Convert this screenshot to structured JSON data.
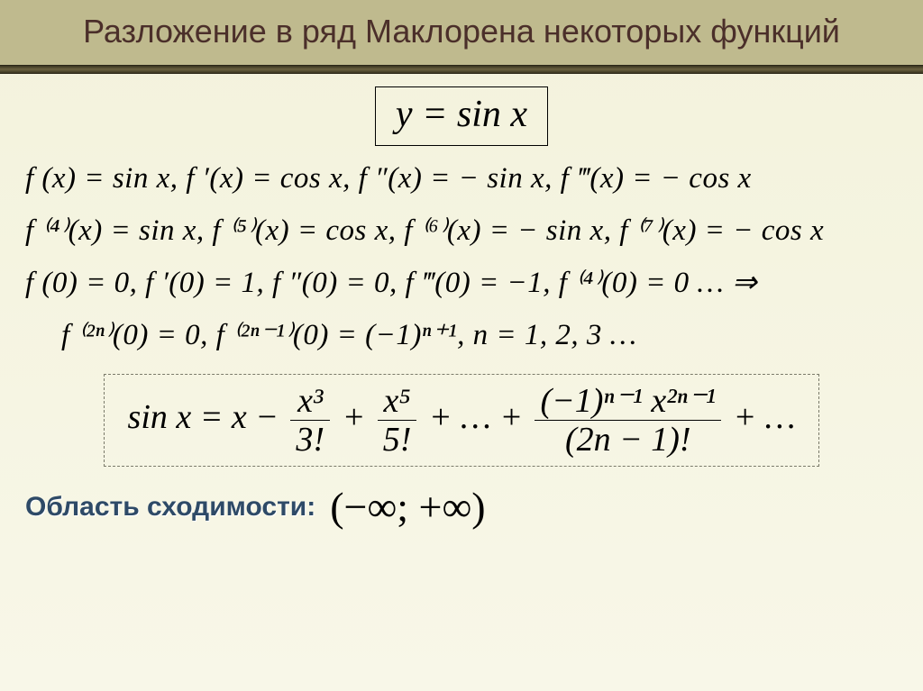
{
  "header": {
    "title": "Разложение в ряд Маклорена некоторых функций"
  },
  "func": {
    "defn": "y = sin x"
  },
  "lines": {
    "d1": "f (x) = sin x,  f ′(x) = cos x,  f ″(x) = − sin x,  f ‴(x) = − cos x",
    "d2": "f ⁽⁴⁾(x) = sin x,  f ⁽⁵⁾(x) = cos x,  f ⁽⁶⁾(x) = − sin x,  f ⁽⁷⁾(x) = − cos x",
    "vals": "f (0) = 0,  f ′(0) = 1,  f ″(0) = 0,  f ‴(0) = −1,  f ⁽⁴⁾(0) = 0 … ⇒",
    "pattern": "f ⁽²ⁿ⁾(0) = 0,  f ⁽²ⁿ⁻¹⁾(0) = (−1)ⁿ⁺¹,  n = 1, 2, 3 …"
  },
  "series": {
    "lhs": "sin x = x −",
    "t1n": "x³",
    "t1d": "3!",
    "plus1": " + ",
    "t2n": "x⁵",
    "t2d": "5!",
    "mid": " + … + ",
    "gn": "(−1)ⁿ⁻¹ x²ⁿ⁻¹",
    "gd": "(2n − 1)!",
    "tail": " + …"
  },
  "domain": {
    "label": "Область сходимости:",
    "value": "(−∞; +∞)"
  },
  "colors": {
    "header_bg": "#bfba8e",
    "title_color": "#4b2f2a",
    "body_bg": "#f5f4e2",
    "domain_label_color": "#2e4a67"
  }
}
